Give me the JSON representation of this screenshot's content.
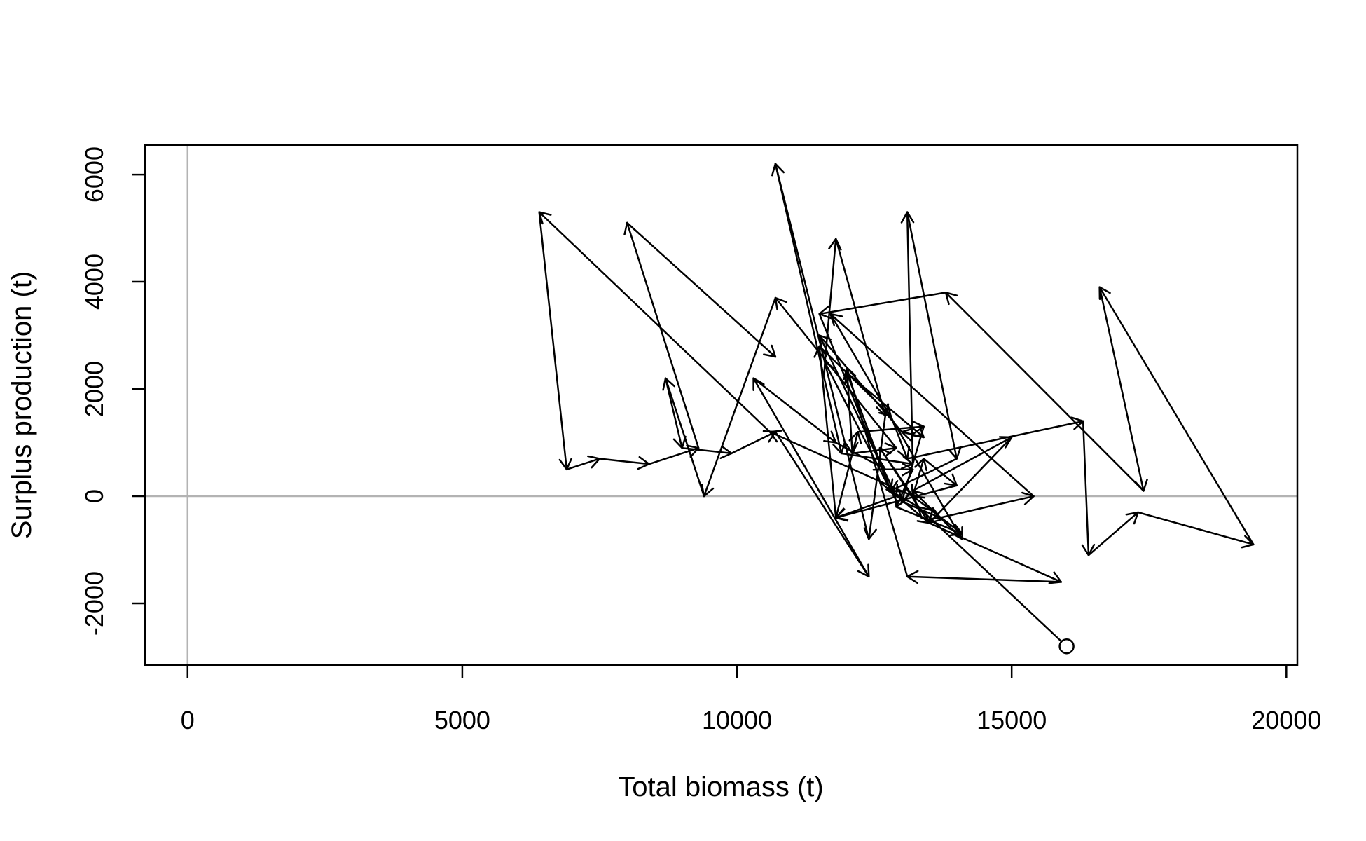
{
  "chart_data": {
    "type": "line",
    "title": "",
    "xlabel": "Total biomass (t)",
    "ylabel": "Surplus production (t)",
    "xlim": [
      -775,
      20200
    ],
    "ylim": [
      -3150,
      6550
    ],
    "xticks": [
      0,
      5000,
      10000,
      15000,
      20000
    ],
    "yticks": [
      -2000,
      0,
      2000,
      4000,
      6000
    ],
    "xtick_labels": [
      "0",
      "5000",
      "10000",
      "15000",
      "20000"
    ],
    "ytick_labels": [
      "-2000",
      "0",
      "2000",
      "4000",
      "6000"
    ],
    "reference_lines": {
      "x": 0,
      "y": 0
    },
    "grid": false,
    "start_marker": "open-circle",
    "colors": {
      "path": "#000000",
      "reference": "#b3b3b3",
      "frame": "#000000"
    },
    "series": [
      {
        "x": [
          16000,
          13300,
          12800,
          11600,
          11800,
          12700,
          12400,
          10700,
          11900,
          13200,
          13100,
          14000,
          12800,
          12000,
          13400,
          13000,
          11500,
          12900,
          11800,
          12200,
          13400,
          13000,
          13700,
          15400,
          11700,
          14100,
          13200,
          15000,
          13500,
          12600,
          13200,
          13400,
          14000,
          11800,
          11500,
          12800,
          13100,
          16300,
          16400,
          17300,
          19400,
          16600,
          17400,
          13800,
          11500,
          12800,
          13500,
          15900,
          13100,
          12000,
          12100,
          12900,
          10700,
          9400,
          8700,
          9000,
          9900,
          10700,
          12400,
          10300,
          11800,
          12700,
          13200,
          12900,
          14100,
          13200,
          10600,
          6400,
          6900,
          7500,
          8400,
          9300,
          8000,
          10700
        ],
        "y": [
          -2800,
          -200,
          100,
          2500,
          4800,
          1500,
          -800,
          6200,
          800,
          600,
          5300,
          700,
          100,
          2300,
          1100,
          1200,
          3000,
          0,
          -400,
          1200,
          1300,
          -100,
          -400,
          0,
          3400,
          -800,
          100,
          1100,
          -500,
          900,
          0,
          700,
          200,
          -400,
          2800,
          1500,
          700,
          1400,
          -1100,
          -300,
          -900,
          3900,
          100,
          3800,
          3400,
          100,
          -500,
          -1600,
          -1500,
          2400,
          800,
          900,
          3700,
          0,
          2200,
          900,
          800,
          1200,
          -1500,
          2200,
          1000,
          500,
          500,
          -200,
          -700,
          0,
          1200,
          5300,
          500,
          700,
          600,
          900,
          5100,
          2600
        ]
      }
    ]
  }
}
